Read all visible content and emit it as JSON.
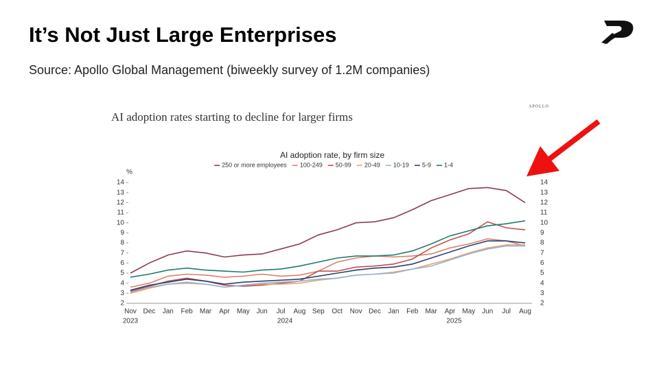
{
  "slide": {
    "title": "It’s Not Just Large Enterprises",
    "subtitle": "Source: Apollo Global Management (biweekly survey of 1.2M companies)",
    "brand": "APOLLO",
    "image_title": "AI adoption rates starting to decline for larger firms"
  },
  "chart_data": {
    "type": "line",
    "title": "AI adoption rate, by firm size",
    "y_label": "%",
    "categories": [
      "Nov",
      "Dec",
      "Jan",
      "Feb",
      "Mar",
      "Apr",
      "May",
      "Jun",
      "Jul",
      "Aug",
      "Sep",
      "Oct",
      "Nov",
      "Dec",
      "Jan",
      "Feb",
      "Mar",
      "Apr",
      "May",
      "Jun",
      "Jul",
      "Aug"
    ],
    "year_labels": [
      "2023",
      "2024",
      "2025"
    ],
    "ylim": [
      2,
      14
    ],
    "yticks": [
      2,
      3,
      4,
      5,
      6,
      7,
      8,
      9,
      10,
      11,
      12,
      13,
      14
    ],
    "right_axis": true,
    "series": [
      {
        "name": "250 or more employees",
        "color": "#8b3a52",
        "values": [
          5.0,
          6.0,
          6.8,
          7.2,
          7.0,
          6.6,
          6.8,
          6.9,
          7.4,
          7.9,
          8.8,
          9.3,
          10.0,
          10.1,
          10.5,
          11.3,
          12.2,
          12.8,
          13.4,
          13.5,
          13.2,
          12.0
        ]
      },
      {
        "name": "100-249",
        "color": "#d9826b",
        "values": [
          3.6,
          4.0,
          4.7,
          4.9,
          4.8,
          4.6,
          4.7,
          4.9,
          4.7,
          4.8,
          5.2,
          6.1,
          6.5,
          6.7,
          6.6,
          6.7,
          6.9,
          7.5,
          7.9,
          8.4,
          8.2,
          7.7
        ]
      },
      {
        "name": "50-99",
        "color": "#c0504d",
        "values": [
          3.2,
          3.7,
          4.2,
          4.5,
          4.2,
          3.8,
          3.7,
          3.8,
          4.0,
          4.2,
          5.2,
          5.2,
          5.6,
          5.7,
          5.9,
          6.4,
          7.5,
          8.3,
          8.9,
          10.1,
          9.5,
          9.3
        ]
      },
      {
        "name": "20-49",
        "color": "#e8a56b",
        "values": [
          3.0,
          3.5,
          3.9,
          4.0,
          3.9,
          3.6,
          3.8,
          3.9,
          3.9,
          4.0,
          4.3,
          4.5,
          4.8,
          4.9,
          5.1,
          5.4,
          5.9,
          6.4,
          7.0,
          7.5,
          7.8,
          7.8
        ]
      },
      {
        "name": "10-19",
        "color": "#8fb3d9",
        "values": [
          3.1,
          3.6,
          3.9,
          4.1,
          3.9,
          3.6,
          3.8,
          4.0,
          4.1,
          4.2,
          4.4,
          4.5,
          4.8,
          4.9,
          5.0,
          5.4,
          5.7,
          6.3,
          6.9,
          7.4,
          7.7,
          7.7
        ]
      },
      {
        "name": "5-9",
        "color": "#2f3f6b",
        "values": [
          3.3,
          3.8,
          4.1,
          4.4,
          4.2,
          3.9,
          4.1,
          4.2,
          4.3,
          4.4,
          4.7,
          5.0,
          5.3,
          5.5,
          5.6,
          5.9,
          6.5,
          7.1,
          7.7,
          8.2,
          8.2,
          8.0
        ]
      },
      {
        "name": "1-4",
        "color": "#1f7a6b",
        "values": [
          4.6,
          4.9,
          5.3,
          5.5,
          5.3,
          5.2,
          5.1,
          5.3,
          5.4,
          5.7,
          6.1,
          6.5,
          6.7,
          6.7,
          6.8,
          7.2,
          7.9,
          8.7,
          9.2,
          9.7,
          9.9,
          10.2
        ]
      }
    ]
  }
}
